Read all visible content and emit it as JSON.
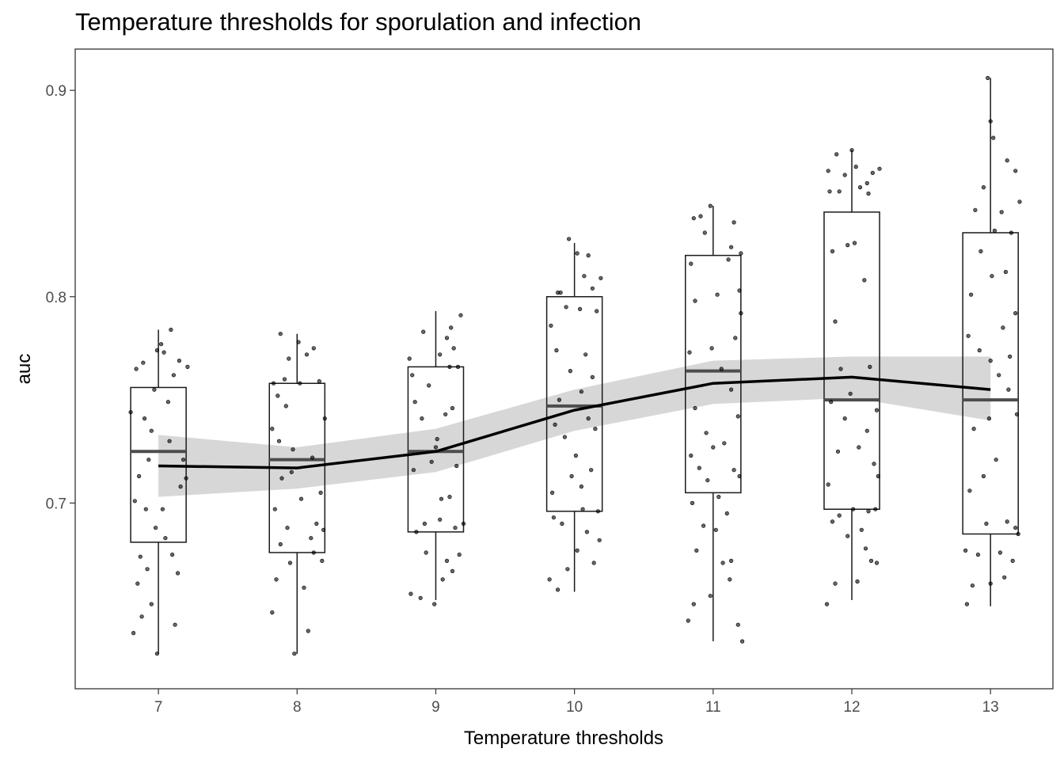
{
  "chart_data": {
    "type": "boxplot",
    "title": "Temperature thresholds for sporulation and infection",
    "xlabel": "Temperature thresholds",
    "ylabel": "auc",
    "xlim": [
      6.4,
      13.45
    ],
    "ylim": [
      0.61,
      0.92
    ],
    "x_ticks": [
      7,
      8,
      9,
      10,
      11,
      12,
      13
    ],
    "y_ticks": [
      0.7,
      0.8,
      0.9
    ],
    "y_tick_labels": [
      "0.7",
      "0.8",
      "0.9"
    ],
    "grid": false,
    "boxes": [
      {
        "x": 7,
        "whisker_low": 0.627,
        "q1": 0.681,
        "median": 0.725,
        "q3": 0.756,
        "whisker_high": 0.784
      },
      {
        "x": 8,
        "whisker_low": 0.627,
        "q1": 0.676,
        "median": 0.721,
        "q3": 0.758,
        "whisker_high": 0.782
      },
      {
        "x": 9,
        "whisker_low": 0.653,
        "q1": 0.686,
        "median": 0.725,
        "q3": 0.766,
        "whisker_high": 0.793
      },
      {
        "x": 10,
        "whisker_low": 0.657,
        "q1": 0.696,
        "median": 0.747,
        "q3": 0.8,
        "whisker_high": 0.826
      },
      {
        "x": 11,
        "whisker_low": 0.633,
        "q1": 0.705,
        "median": 0.764,
        "q3": 0.82,
        "whisker_high": 0.844
      },
      {
        "x": 12,
        "whisker_low": 0.653,
        "q1": 0.697,
        "median": 0.75,
        "q3": 0.841,
        "whisker_high": 0.871
      },
      {
        "x": 13,
        "whisker_low": 0.65,
        "q1": 0.685,
        "median": 0.75,
        "q3": 0.831,
        "whisker_high": 0.906
      }
    ],
    "smooth_line": {
      "x": [
        7,
        8,
        9,
        10,
        11,
        12,
        13
      ],
      "y": [
        0.718,
        0.717,
        0.725,
        0.745,
        0.758,
        0.761,
        0.755
      ],
      "ci_low": [
        0.703,
        0.707,
        0.715,
        0.735,
        0.748,
        0.751,
        0.74
      ],
      "ci_high": [
        0.733,
        0.727,
        0.736,
        0.755,
        0.769,
        0.771,
        0.771
      ]
    },
    "jitter_points": [
      [
        6.82,
        0.637
      ],
      [
        6.88,
        0.645
      ],
      [
        6.85,
        0.661
      ],
      [
        6.92,
        0.668
      ],
      [
        6.87,
        0.674
      ],
      [
        6.95,
        0.651
      ],
      [
        6.98,
        0.688
      ],
      [
        6.83,
        0.701
      ],
      [
        6.91,
        0.697
      ],
      [
        7.05,
        0.683
      ],
      [
        7.1,
        0.675
      ],
      [
        7.14,
        0.666
      ],
      [
        7.12,
        0.641
      ],
      [
        7.03,
        0.697
      ],
      [
        6.86,
        0.713
      ],
      [
        6.93,
        0.721
      ],
      [
        7.16,
        0.708
      ],
      [
        7.2,
        0.712
      ],
      [
        7.18,
        0.721
      ],
      [
        7.08,
        0.73
      ],
      [
        6.8,
        0.744
      ],
      [
        6.9,
        0.741
      ],
      [
        6.97,
        0.755
      ],
      [
        7.07,
        0.749
      ],
      [
        6.84,
        0.765
      ],
      [
        6.89,
        0.768
      ],
      [
        6.99,
        0.774
      ],
      [
        7.04,
        0.773
      ],
      [
        7.15,
        0.769
      ],
      [
        7.21,
        0.766
      ],
      [
        7.09,
        0.784
      ],
      [
        7.02,
        0.777
      ],
      [
        6.95,
        0.735
      ],
      [
        7.11,
        0.762
      ],
      [
        6.99,
        0.627
      ],
      [
        7.82,
        0.647
      ],
      [
        7.85,
        0.663
      ],
      [
        7.95,
        0.671
      ],
      [
        8.05,
        0.659
      ],
      [
        8.12,
        0.676
      ],
      [
        8.18,
        0.672
      ],
      [
        7.98,
        0.627
      ],
      [
        8.08,
        0.638
      ],
      [
        7.88,
        0.68
      ],
      [
        7.93,
        0.688
      ],
      [
        8.1,
        0.683
      ],
      [
        8.14,
        0.69
      ],
      [
        7.84,
        0.697
      ],
      [
        8.03,
        0.702
      ],
      [
        7.89,
        0.712
      ],
      [
        8.17,
        0.705
      ],
      [
        7.96,
        0.715
      ],
      [
        8.11,
        0.722
      ],
      [
        7.87,
        0.73
      ],
      [
        7.82,
        0.736
      ],
      [
        8.2,
        0.741
      ],
      [
        7.92,
        0.747
      ],
      [
        7.86,
        0.752
      ],
      [
        8.02,
        0.758
      ],
      [
        7.91,
        0.76
      ],
      [
        8.16,
        0.759
      ],
      [
        8.07,
        0.772
      ],
      [
        8.12,
        0.775
      ],
      [
        7.94,
        0.77
      ],
      [
        7.88,
        0.782
      ],
      [
        8.01,
        0.778
      ],
      [
        7.97,
        0.726
      ],
      [
        8.19,
        0.687
      ],
      [
        7.83,
        0.758
      ],
      [
        8.82,
        0.656
      ],
      [
        8.89,
        0.654
      ],
      [
        8.99,
        0.651
      ],
      [
        9.05,
        0.663
      ],
      [
        9.12,
        0.667
      ],
      [
        9.08,
        0.672
      ],
      [
        8.93,
        0.676
      ],
      [
        9.17,
        0.675
      ],
      [
        8.86,
        0.686
      ],
      [
        8.92,
        0.69
      ],
      [
        9.03,
        0.692
      ],
      [
        9.14,
        0.688
      ],
      [
        9.2,
        0.69
      ],
      [
        9.04,
        0.702
      ],
      [
        9.1,
        0.703
      ],
      [
        8.84,
        0.716
      ],
      [
        8.97,
        0.72
      ],
      [
        9.15,
        0.718
      ],
      [
        9.01,
        0.731
      ],
      [
        8.9,
        0.741
      ],
      [
        8.85,
        0.749
      ],
      [
        9.07,
        0.743
      ],
      [
        9.12,
        0.746
      ],
      [
        8.95,
        0.757
      ],
      [
        9.16,
        0.766
      ],
      [
        9.1,
        0.766
      ],
      [
        8.83,
        0.762
      ],
      [
        9.03,
        0.772
      ],
      [
        9.13,
        0.775
      ],
      [
        9.08,
        0.78
      ],
      [
        9.18,
        0.791
      ],
      [
        9.11,
        0.785
      ],
      [
        8.91,
        0.783
      ],
      [
        8.81,
        0.77
      ],
      [
        9.0,
        0.727
      ],
      [
        9.82,
        0.663
      ],
      [
        9.88,
        0.658
      ],
      [
        9.95,
        0.668
      ],
      [
        10.02,
        0.677
      ],
      [
        10.14,
        0.671
      ],
      [
        10.18,
        0.682
      ],
      [
        10.09,
        0.686
      ],
      [
        9.85,
        0.693
      ],
      [
        9.91,
        0.69
      ],
      [
        10.06,
        0.697
      ],
      [
        10.17,
        0.696
      ],
      [
        9.84,
        0.705
      ],
      [
        9.98,
        0.713
      ],
      [
        10.05,
        0.708
      ],
      [
        10.12,
        0.716
      ],
      [
        10.01,
        0.723
      ],
      [
        9.86,
        0.738
      ],
      [
        9.93,
        0.732
      ],
      [
        10.1,
        0.741
      ],
      [
        10.15,
        0.736
      ],
      [
        9.89,
        0.75
      ],
      [
        10.05,
        0.754
      ],
      [
        9.97,
        0.764
      ],
      [
        10.13,
        0.761
      ],
      [
        9.87,
        0.774
      ],
      [
        10.08,
        0.772
      ],
      [
        9.83,
        0.786
      ],
      [
        9.94,
        0.795
      ],
      [
        10.04,
        0.794
      ],
      [
        10.16,
        0.793
      ],
      [
        10.07,
        0.81
      ],
      [
        10.19,
        0.809
      ],
      [
        9.9,
        0.802
      ],
      [
        10.02,
        0.821
      ],
      [
        10.1,
        0.82
      ],
      [
        9.96,
        0.828
      ],
      [
        10.13,
        0.804
      ],
      [
        9.88,
        0.802
      ],
      [
        10.82,
        0.643
      ],
      [
        10.86,
        0.651
      ],
      [
        10.98,
        0.655
      ],
      [
        11.12,
        0.663
      ],
      [
        11.18,
        0.641
      ],
      [
        11.21,
        0.633
      ],
      [
        11.07,
        0.671
      ],
      [
        11.13,
        0.672
      ],
      [
        10.88,
        0.677
      ],
      [
        11.02,
        0.687
      ],
      [
        10.93,
        0.689
      ],
      [
        11.1,
        0.695
      ],
      [
        10.85,
        0.7
      ],
      [
        11.04,
        0.703
      ],
      [
        10.96,
        0.711
      ],
      [
        11.19,
        0.713
      ],
      [
        10.9,
        0.717
      ],
      [
        11.15,
        0.716
      ],
      [
        10.84,
        0.723
      ],
      [
        11.0,
        0.727
      ],
      [
        11.08,
        0.729
      ],
      [
        10.95,
        0.734
      ],
      [
        11.18,
        0.742
      ],
      [
        10.87,
        0.746
      ],
      [
        11.13,
        0.755
      ],
      [
        11.06,
        0.765
      ],
      [
        10.83,
        0.773
      ],
      [
        10.99,
        0.775
      ],
      [
        11.16,
        0.78
      ],
      [
        11.2,
        0.792
      ],
      [
        10.87,
        0.798
      ],
      [
        11.03,
        0.801
      ],
      [
        11.19,
        0.803
      ],
      [
        10.84,
        0.816
      ],
      [
        11.11,
        0.818
      ],
      [
        11.2,
        0.821
      ],
      [
        10.94,
        0.831
      ],
      [
        10.86,
        0.838
      ],
      [
        10.91,
        0.839
      ],
      [
        11.15,
        0.836
      ],
      [
        10.98,
        0.844
      ],
      [
        11.13,
        0.824
      ],
      [
        11.82,
        0.651
      ],
      [
        11.88,
        0.661
      ],
      [
        12.04,
        0.662
      ],
      [
        12.14,
        0.672
      ],
      [
        12.18,
        0.671
      ],
      [
        12.1,
        0.678
      ],
      [
        11.97,
        0.684
      ],
      [
        12.07,
        0.687
      ],
      [
        11.86,
        0.691
      ],
      [
        11.91,
        0.694
      ],
      [
        12.01,
        0.697
      ],
      [
        12.12,
        0.696
      ],
      [
        12.17,
        0.697
      ],
      [
        11.83,
        0.709
      ],
      [
        12.19,
        0.713
      ],
      [
        12.16,
        0.719
      ],
      [
        11.9,
        0.725
      ],
      [
        12.05,
        0.727
      ],
      [
        12.11,
        0.735
      ],
      [
        11.95,
        0.741
      ],
      [
        12.18,
        0.745
      ],
      [
        11.85,
        0.749
      ],
      [
        11.99,
        0.753
      ],
      [
        12.13,
        0.766
      ],
      [
        11.92,
        0.765
      ],
      [
        11.88,
        0.788
      ],
      [
        12.09,
        0.808
      ],
      [
        11.86,
        0.822
      ],
      [
        11.97,
        0.825
      ],
      [
        12.02,
        0.826
      ],
      [
        11.84,
        0.851
      ],
      [
        11.91,
        0.851
      ],
      [
        12.06,
        0.853
      ],
      [
        12.12,
        0.85
      ],
      [
        11.83,
        0.861
      ],
      [
        11.95,
        0.859
      ],
      [
        12.03,
        0.863
      ],
      [
        12.15,
        0.86
      ],
      [
        12.2,
        0.862
      ],
      [
        11.89,
        0.869
      ],
      [
        12.0,
        0.871
      ],
      [
        12.11,
        0.855
      ],
      [
        12.83,
        0.651
      ],
      [
        12.87,
        0.66
      ],
      [
        13.0,
        0.661
      ],
      [
        13.1,
        0.664
      ],
      [
        13.16,
        0.672
      ],
      [
        12.82,
        0.677
      ],
      [
        12.91,
        0.675
      ],
      [
        13.07,
        0.676
      ],
      [
        13.2,
        0.685
      ],
      [
        12.97,
        0.69
      ],
      [
        13.12,
        0.691
      ],
      [
        13.18,
        0.688
      ],
      [
        12.85,
        0.706
      ],
      [
        12.95,
        0.713
      ],
      [
        13.04,
        0.721
      ],
      [
        12.88,
        0.736
      ],
      [
        12.99,
        0.741
      ],
      [
        13.13,
        0.755
      ],
      [
        13.19,
        0.743
      ],
      [
        13.06,
        0.762
      ],
      [
        12.92,
        0.774
      ],
      [
        13.0,
        0.769
      ],
      [
        13.14,
        0.771
      ],
      [
        12.84,
        0.781
      ],
      [
        13.09,
        0.785
      ],
      [
        13.18,
        0.792
      ],
      [
        12.86,
        0.801
      ],
      [
        13.01,
        0.81
      ],
      [
        13.11,
        0.812
      ],
      [
        12.93,
        0.822
      ],
      [
        13.15,
        0.831
      ],
      [
        13.03,
        0.832
      ],
      [
        12.89,
        0.842
      ],
      [
        13.08,
        0.841
      ],
      [
        13.21,
        0.846
      ],
      [
        12.95,
        0.853
      ],
      [
        13.12,
        0.866
      ],
      [
        13.18,
        0.861
      ],
      [
        13.02,
        0.877
      ],
      [
        13.0,
        0.885
      ],
      [
        12.98,
        0.906
      ]
    ],
    "colors": {
      "box_edge": "#1a1a1a",
      "median": "#4d4d4d",
      "points": "#000000",
      "smooth_line": "#000000",
      "ci_band": "#d3d3d3",
      "panel_border": "#333333",
      "tick_label": "#4d4d4d"
    }
  }
}
